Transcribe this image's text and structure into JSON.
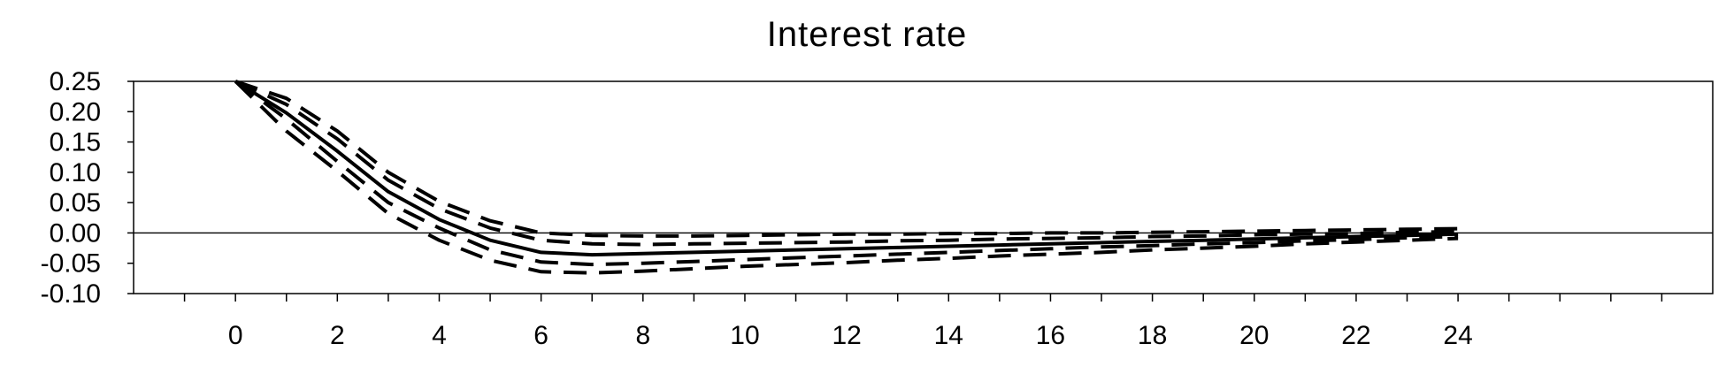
{
  "chart_data": {
    "type": "line",
    "title": "Interest rate",
    "xlabel": "",
    "ylabel": "",
    "xlim": [
      -2,
      29
    ],
    "ylim": [
      -0.1,
      0.25
    ],
    "x_ticks": [
      0,
      2,
      4,
      6,
      8,
      10,
      12,
      14,
      16,
      18,
      20,
      22,
      24
    ],
    "y_ticks": [
      0.25,
      0.2,
      0.15,
      0.1,
      0.05,
      0.0,
      -0.05,
      -0.1
    ],
    "y_tick_labels": [
      "0.25",
      "0.20",
      "0.15",
      "0.10",
      "0.05",
      "0.00",
      "-0.05",
      "-0.10"
    ],
    "zero_line": true,
    "grid": false,
    "colors": {
      "line": "#000000",
      "background": "#ffffff"
    },
    "x": [
      0,
      1,
      2,
      3,
      4,
      5,
      6,
      7,
      8,
      9,
      10,
      11,
      12,
      13,
      14,
      15,
      16,
      17,
      18,
      19,
      20,
      21,
      22,
      23,
      24
    ],
    "series": [
      {
        "style": "solid",
        "values": [
          0.25,
          0.198,
          0.135,
          0.068,
          0.022,
          -0.012,
          -0.032,
          -0.036,
          -0.034,
          -0.032,
          -0.03,
          -0.028,
          -0.026,
          -0.024,
          -0.022,
          -0.02,
          -0.018,
          -0.016,
          -0.014,
          -0.012,
          -0.01,
          -0.008,
          -0.006,
          -0.004,
          -0.002
        ]
      },
      {
        "style": "dashed",
        "values": [
          0.25,
          0.222,
          0.168,
          0.1,
          0.052,
          0.02,
          0.0,
          -0.004,
          -0.005,
          -0.005,
          -0.004,
          -0.003,
          -0.002,
          -0.002,
          -0.001,
          -0.001,
          0.0,
          0.0,
          0.001,
          0.002,
          0.003,
          0.004,
          0.005,
          0.006,
          0.007
        ]
      },
      {
        "style": "dashed",
        "values": [
          0.25,
          0.212,
          0.155,
          0.087,
          0.04,
          0.008,
          -0.012,
          -0.018,
          -0.019,
          -0.018,
          -0.017,
          -0.016,
          -0.015,
          -0.013,
          -0.012,
          -0.01,
          -0.009,
          -0.008,
          -0.006,
          -0.005,
          -0.003,
          -0.002,
          -0.001,
          0.001,
          0.002
        ]
      },
      {
        "style": "dashed",
        "values": [
          0.25,
          0.188,
          0.118,
          0.05,
          0.008,
          -0.028,
          -0.048,
          -0.052,
          -0.05,
          -0.047,
          -0.044,
          -0.041,
          -0.038,
          -0.035,
          -0.032,
          -0.029,
          -0.026,
          -0.023,
          -0.021,
          -0.018,
          -0.016,
          -0.013,
          -0.011,
          -0.008,
          -0.006
        ]
      },
      {
        "style": "dashed",
        "values": [
          0.25,
          0.168,
          0.102,
          0.032,
          -0.012,
          -0.045,
          -0.064,
          -0.066,
          -0.063,
          -0.059,
          -0.055,
          -0.052,
          -0.049,
          -0.045,
          -0.042,
          -0.038,
          -0.035,
          -0.032,
          -0.028,
          -0.025,
          -0.022,
          -0.018,
          -0.015,
          -0.012,
          -0.009
        ]
      }
    ]
  }
}
